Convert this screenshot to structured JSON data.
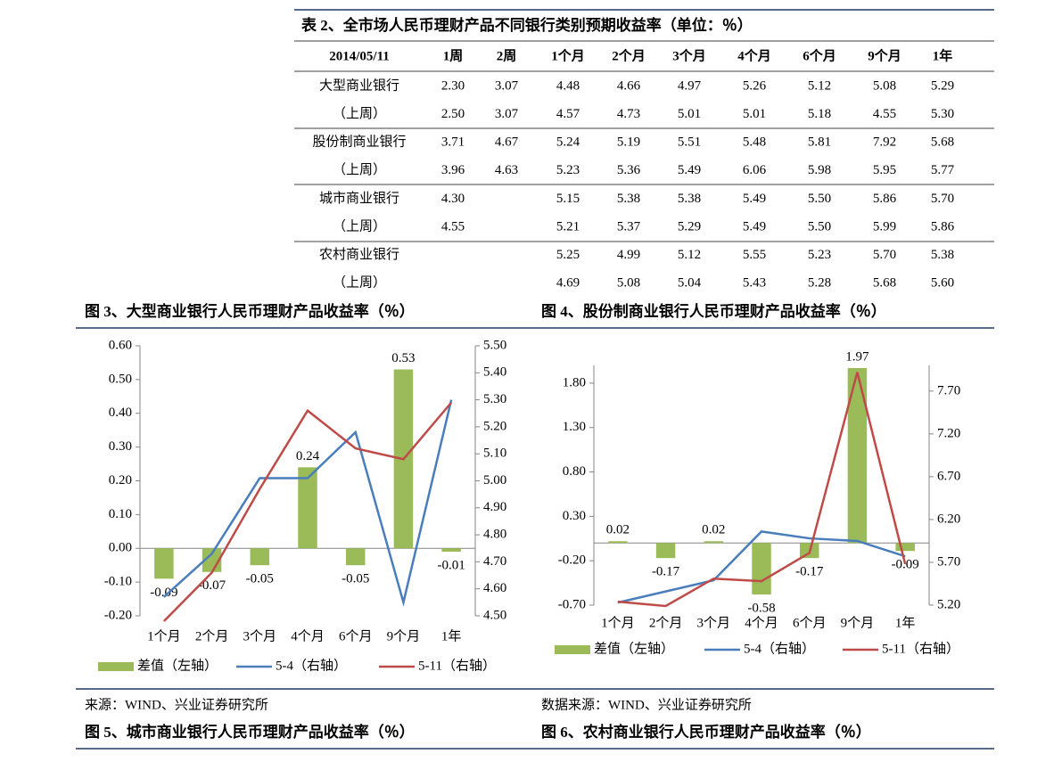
{
  "table": {
    "title": "表 2、全市场人民币理财产品不同银行类别预期收益率（单位：％）",
    "header": [
      "2014/05/11",
      "1周",
      "2周",
      "1个月",
      "2个月",
      "3个月",
      "4个月",
      "6个月",
      "9个月",
      "1年"
    ],
    "rows": [
      [
        "大型商业银行",
        "2.30",
        "3.07",
        "4.48",
        "4.66",
        "4.97",
        "5.26",
        "5.12",
        "5.08",
        "5.29"
      ],
      [
        "（上周）",
        "2.50",
        "3.07",
        "4.57",
        "4.73",
        "5.01",
        "5.01",
        "5.18",
        "4.55",
        "5.30"
      ],
      [
        "股份制商业银行",
        "3.71",
        "4.67",
        "5.24",
        "5.19",
        "5.51",
        "5.48",
        "5.81",
        "7.92",
        "5.68"
      ],
      [
        "（上周）",
        "3.96",
        "4.63",
        "5.23",
        "5.36",
        "5.49",
        "6.06",
        "5.98",
        "5.95",
        "5.77"
      ],
      [
        "城市商业银行",
        "4.30",
        null,
        "5.15",
        "5.38",
        "5.38",
        "5.49",
        "5.50",
        "5.86",
        "5.70"
      ],
      [
        "（上周）",
        "4.55",
        null,
        "5.21",
        "5.37",
        "5.29",
        "5.49",
        "5.50",
        "5.99",
        "5.86"
      ],
      [
        "农村商业银行",
        null,
        null,
        "5.25",
        "4.99",
        "5.12",
        "5.55",
        "5.23",
        "5.70",
        "5.38"
      ],
      [
        "（上周）",
        null,
        null,
        "4.69",
        "5.08",
        "5.04",
        "5.43",
        "5.28",
        "5.68",
        "5.60"
      ]
    ]
  },
  "chart_data": [
    {
      "type": "bar",
      "title": "图 3、大型商业银行人民币理财产品收益率（％）",
      "categories": [
        "1个月",
        "2个月",
        "3个月",
        "4个月",
        "6个月",
        "9个月",
        "1年"
      ],
      "series": [
        {
          "name": "差值（左轴）",
          "type": "bar",
          "color": "#9bbb59",
          "values": [
            -0.09,
            -0.07,
            -0.05,
            0.24,
            -0.05,
            0.53,
            -0.01
          ]
        },
        {
          "name": "5-4（右轴）",
          "type": "line",
          "axis": "y2",
          "color": "#4a7ebb",
          "values": [
            4.57,
            4.73,
            5.01,
            5.01,
            5.18,
            4.55,
            5.3
          ]
        },
        {
          "name": "5-11（右轴）",
          "type": "line",
          "axis": "y2",
          "color": "#be4b48",
          "values": [
            4.48,
            4.66,
            4.97,
            5.26,
            5.12,
            5.08,
            5.29
          ]
        }
      ],
      "ylim": [
        -0.2,
        0.6
      ],
      "yticks": [
        {
          "value": -0.2,
          "label": "-0.20"
        },
        {
          "value": -0.1,
          "label": "-0.10"
        },
        {
          "value": 0,
          "label": "0.00"
        },
        {
          "value": 0.1,
          "label": "0.10"
        },
        {
          "value": 0.2,
          "label": "0.20"
        },
        {
          "value": 0.3,
          "label": "0.30"
        },
        {
          "value": 0.4,
          "label": "0.40"
        },
        {
          "value": 0.5,
          "label": "0.50"
        },
        {
          "value": 0.6,
          "label": "0.60"
        }
      ],
      "y2lim": [
        4.5,
        5.5
      ],
      "y2ticks": [
        {
          "value": 4.5,
          "label": "4.50"
        },
        {
          "value": 4.6,
          "label": "4.60"
        },
        {
          "value": 4.7,
          "label": "4.70"
        },
        {
          "value": 4.8,
          "label": "4.80"
        },
        {
          "value": 4.9,
          "label": "4.90"
        },
        {
          "value": 5.0,
          "label": "5.00"
        },
        {
          "value": 5.1,
          "label": "5.10"
        },
        {
          "value": 5.2,
          "label": "5.20"
        },
        {
          "value": 5.3,
          "label": "5.30"
        },
        {
          "value": 5.4,
          "label": "5.40"
        },
        {
          "value": 5.5,
          "label": "5.50"
        }
      ],
      "legend": "bottom",
      "source": "来源：WIND、兴业证券研究所"
    },
    {
      "type": "bar",
      "title": "图 4、股份制商业银行人民币理财产品收益率（％）",
      "categories": [
        "1个月",
        "2个月",
        "3个月",
        "4个月",
        "6个月",
        "9个月",
        "1年"
      ],
      "series": [
        {
          "name": "差值（左轴）",
          "type": "bar",
          "color": "#9bbb59",
          "values": [
            0.02,
            -0.17,
            0.02,
            -0.58,
            -0.17,
            1.97,
            -0.09
          ]
        },
        {
          "name": "5-4（右轴）",
          "type": "line",
          "axis": "y2",
          "color": "#4a7ebb",
          "values": [
            5.23,
            5.36,
            5.49,
            6.06,
            5.98,
            5.95,
            5.77
          ]
        },
        {
          "name": "5-11（右轴）",
          "type": "line",
          "axis": "y2",
          "color": "#be4b48",
          "values": [
            5.24,
            5.19,
            5.51,
            5.48,
            5.81,
            7.92,
            5.68
          ]
        }
      ],
      "ylim": [
        -0.7,
        2.0
      ],
      "yticks": [
        {
          "value": -0.7,
          "label": "-0.70"
        },
        {
          "value": -0.2,
          "label": "-0.20"
        },
        {
          "value": 0.3,
          "label": "0.30"
        },
        {
          "value": 0.8,
          "label": "0.80"
        },
        {
          "value": 1.3,
          "label": "1.30"
        },
        {
          "value": 1.8,
          "label": "1.80"
        }
      ],
      "y2lim": [
        5.2,
        8.0
      ],
      "y2ticks": [
        {
          "value": 5.2,
          "label": "5.20"
        },
        {
          "value": 5.7,
          "label": "5.70"
        },
        {
          "value": 6.2,
          "label": "6.20"
        },
        {
          "value": 6.7,
          "label": "6.70"
        },
        {
          "value": 7.2,
          "label": "7.20"
        },
        {
          "value": 7.7,
          "label": "7.70"
        }
      ],
      "legend": "bottom",
      "source": "数据来源：WIND、兴业证券研究所"
    }
  ],
  "captions": [
    "图 5、城市商业银行人民币理财产品收益率（％）",
    "图 6、农村商业银行人民币理财产品收益率（％）"
  ]
}
